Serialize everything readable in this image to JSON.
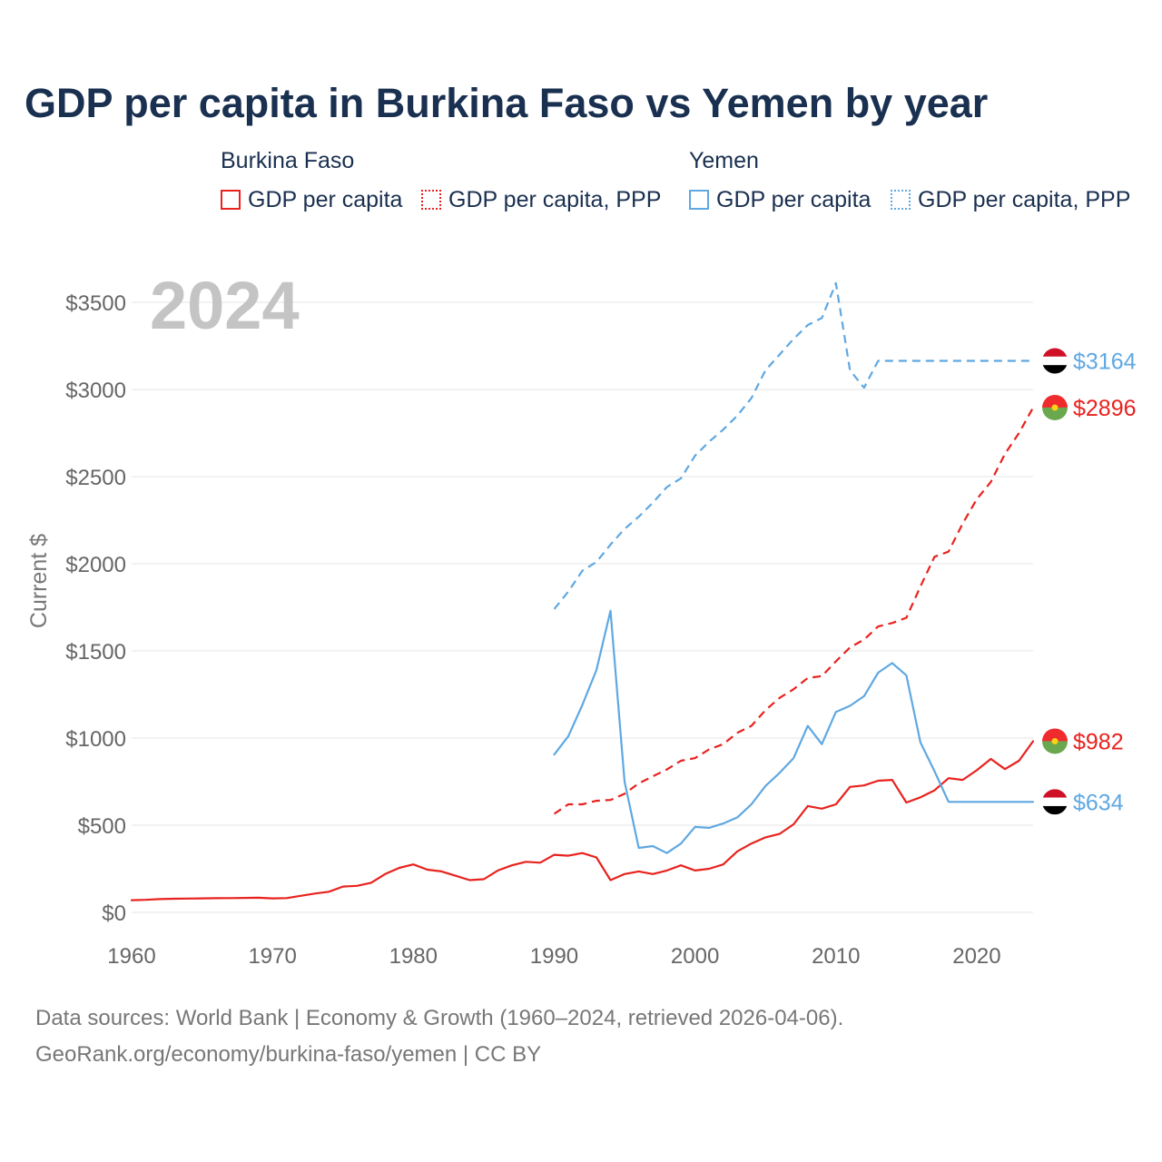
{
  "title": "GDP per capita in Burkina Faso vs Yemen by year",
  "legend": {
    "groups": [
      {
        "name": "Burkina Faso",
        "items": [
          "GDP per capita",
          "GDP per capita, PPP"
        ],
        "color": "#e8221e"
      },
      {
        "name": "Yemen",
        "items": [
          "GDP per capita",
          "GDP per capita, PPP"
        ],
        "color": "#5fa8e2"
      }
    ]
  },
  "year_watermark": "2024",
  "footer": {
    "line1": "Data sources: World Bank | Economy & Growth (1960–2024, retrieved 2026-04-06).",
    "line2": "GeoRank.org/economy/burkina-faso/yemen | CC BY"
  },
  "chart_data": {
    "type": "line",
    "title": "GDP per capita in Burkina Faso vs Yemen by year",
    "ylabel": "Current $",
    "xlabel": "",
    "xlim": [
      1960,
      2024
    ],
    "ylim": [
      0,
      3500
    ],
    "x_ticks": [
      1960,
      1970,
      1980,
      1990,
      2000,
      2010,
      2020
    ],
    "y_ticks": [
      0,
      500,
      1000,
      1500,
      2000,
      2500,
      3000,
      3500
    ],
    "y_tick_labels": [
      "$0",
      "$500",
      "$1000",
      "$1500",
      "$2000",
      "$2500",
      "$3000",
      "$3500"
    ],
    "series": [
      {
        "name": "Burkina Faso GDP per capita",
        "country": "Burkina Faso",
        "style": "solid",
        "color": "#e8221e",
        "end_label": "$982",
        "x": [
          1960,
          1961,
          1962,
          1963,
          1964,
          1965,
          1966,
          1967,
          1968,
          1969,
          1970,
          1971,
          1972,
          1973,
          1974,
          1975,
          1976,
          1977,
          1978,
          1979,
          1980,
          1981,
          1982,
          1983,
          1984,
          1985,
          1986,
          1987,
          1988,
          1989,
          1990,
          1991,
          1992,
          1993,
          1994,
          1995,
          1996,
          1997,
          1998,
          1999,
          2000,
          2001,
          2002,
          2003,
          2004,
          2005,
          2006,
          2007,
          2008,
          2009,
          2010,
          2011,
          2012,
          2013,
          2014,
          2015,
          2016,
          2017,
          2018,
          2019,
          2020,
          2021,
          2022,
          2023,
          2024
        ],
        "values": [
          70,
          72,
          76,
          78,
          79,
          80,
          81,
          82,
          83,
          84,
          80,
          82,
          95,
          108,
          118,
          148,
          152,
          170,
          220,
          255,
          275,
          245,
          235,
          210,
          185,
          190,
          240,
          270,
          290,
          285,
          330,
          325,
          340,
          315,
          185,
          220,
          235,
          220,
          240,
          270,
          240,
          250,
          275,
          350,
          395,
          430,
          450,
          505,
          610,
          595,
          620,
          720,
          728,
          755,
          760,
          630,
          660,
          700,
          770,
          760,
          815,
          880,
          822,
          870,
          982
        ]
      },
      {
        "name": "Burkina Faso GDP per capita, PPP",
        "country": "Burkina Faso",
        "style": "dashed",
        "color": "#e8221e",
        "end_label": "$2896",
        "x": [
          1990,
          1991,
          1992,
          1993,
          1994,
          1995,
          1996,
          1997,
          1998,
          1999,
          2000,
          2001,
          2002,
          2003,
          2004,
          2005,
          2006,
          2007,
          2008,
          2009,
          2010,
          2011,
          2012,
          2013,
          2014,
          2015,
          2016,
          2017,
          2018,
          2019,
          2020,
          2021,
          2022,
          2023,
          2024
        ],
        "values": [
          565,
          620,
          620,
          640,
          645,
          680,
          740,
          780,
          820,
          870,
          885,
          935,
          965,
          1030,
          1070,
          1160,
          1230,
          1280,
          1345,
          1355,
          1440,
          1520,
          1565,
          1640,
          1660,
          1690,
          1870,
          2040,
          2070,
          2230,
          2370,
          2470,
          2630,
          2750,
          2896
        ]
      },
      {
        "name": "Yemen GDP per capita",
        "country": "Yemen",
        "style": "solid",
        "color": "#5fa8e2",
        "end_label": "$634",
        "x": [
          1990,
          1991,
          1992,
          1993,
          1994,
          1995,
          1996,
          1997,
          1998,
          1999,
          2000,
          2001,
          2002,
          2003,
          2004,
          2005,
          2006,
          2007,
          2008,
          2009,
          2010,
          2011,
          2012,
          2013,
          2014,
          2015,
          2016,
          2017,
          2018,
          2019,
          2020,
          2021,
          2022,
          2023,
          2024
        ],
        "values": [
          905,
          1010,
          1190,
          1390,
          1730,
          750,
          370,
          380,
          340,
          395,
          490,
          485,
          510,
          545,
          620,
          725,
          800,
          885,
          1070,
          965,
          1150,
          1185,
          1240,
          1375,
          1430,
          1360,
          975,
          810,
          634,
          634,
          634,
          634,
          634,
          634,
          634
        ]
      },
      {
        "name": "Yemen GDP per capita, PPP",
        "country": "Yemen",
        "style": "dashed",
        "color": "#5fa8e2",
        "end_label": "$3164",
        "x": [
          1990,
          1991,
          1992,
          1993,
          1994,
          1995,
          1996,
          1997,
          1998,
          1999,
          2000,
          2001,
          2002,
          2003,
          2004,
          2005,
          2006,
          2007,
          2008,
          2009,
          2010,
          2011,
          2012,
          2013,
          2014,
          2015,
          2016,
          2017,
          2018,
          2019,
          2020,
          2021,
          2022,
          2023,
          2024
        ],
        "values": [
          1740,
          1840,
          1960,
          2010,
          2110,
          2200,
          2270,
          2350,
          2440,
          2490,
          2620,
          2700,
          2770,
          2850,
          2950,
          3110,
          3200,
          3290,
          3370,
          3410,
          3610,
          3110,
          3010,
          3164,
          3164,
          3164,
          3164,
          3164,
          3164,
          3164,
          3164,
          3164,
          3164,
          3164,
          3164
        ]
      }
    ]
  }
}
